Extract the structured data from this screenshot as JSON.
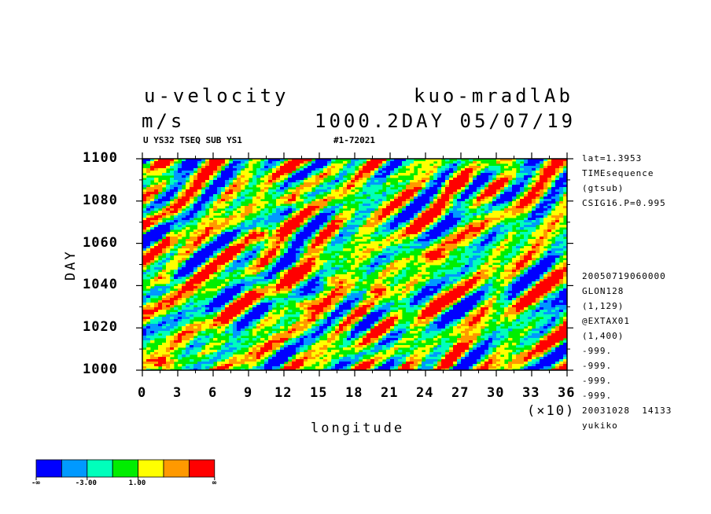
{
  "header": {
    "title_left": "u-velocity",
    "title_right": "kuo-mradlAb",
    "units": "m/s",
    "time_label": "1000.2DAY 05/07/19",
    "subtitle_left": "U YS32 TSEQ SUB YS1",
    "subtitle_right": "#1-72021"
  },
  "side_info": [
    "lat=1.3953",
    "TIMEsequence",
    "(gtsub)",
    "CSIG16.P=0.995",
    "20050719060000",
    "GLON128",
    "(1,129)",
    "@EXTAX01",
    "(1,400)",
    "-999.",
    "-999.",
    "-999.",
    "-999.",
    "20031028  14133",
    "yukiko"
  ],
  "chart_data": {
    "type": "heatmap",
    "title": "u-velocity",
    "xlabel": "longitude",
    "ylabel": "DAY",
    "x_multiplier_label": "(×10)",
    "xlim": [
      0,
      360
    ],
    "ylim": [
      1000,
      1100
    ],
    "x_ticks": [
      "0",
      "3",
      "6",
      "9",
      "12",
      "15",
      "18",
      "21",
      "24",
      "27",
      "30",
      "33",
      "36"
    ],
    "y_ticks": [
      "1000",
      "1020",
      "1040",
      "1060",
      "1080",
      "1100"
    ],
    "colorbar": {
      "colors": [
        "#0000ff",
        "#0099ff",
        "#00ffbb",
        "#00ee00",
        "#ffff00",
        "#ff9900",
        "#ff0000"
      ],
      "labels": [
        "-∞",
        "-3.00",
        "1.00",
        "∞"
      ]
    },
    "hotspots": [
      {
        "lon": 270,
        "day": 1088,
        "level": 6
      },
      {
        "lon": 97,
        "day": 1064,
        "level": 6
      },
      {
        "lon": 248,
        "day": 1054,
        "level": 6
      },
      {
        "lon": 120,
        "day": 1046,
        "level": 6
      },
      {
        "lon": 137,
        "day": 1031,
        "level": 6
      },
      {
        "lon": 160,
        "day": 1043,
        "level": 6
      },
      {
        "lon": 22,
        "day": 1042,
        "level": 6
      },
      {
        "lon": 15,
        "day": 1004,
        "level": 6
      },
      {
        "lon": 200,
        "day": 1038,
        "level": 5
      },
      {
        "lon": 130,
        "day": 1080,
        "level": 5
      }
    ]
  }
}
